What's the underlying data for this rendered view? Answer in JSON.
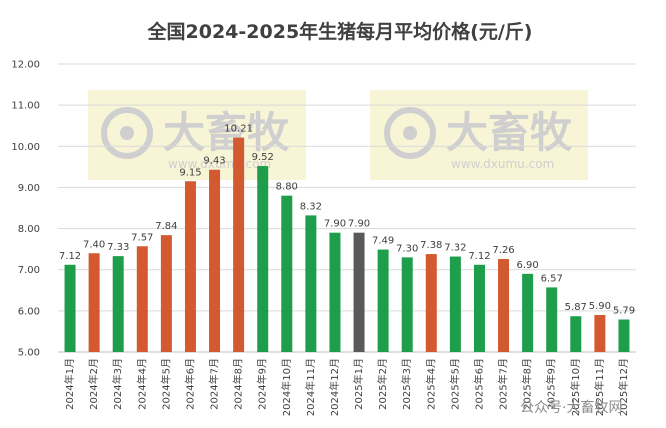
{
  "chart_data": {
    "type": "bar",
    "title": "全国2024-2025年生猪每月平均价格(元/斤)",
    "xlabel": "",
    "ylabel": "",
    "ylim": [
      5.0,
      12.0
    ],
    "yticks": [
      "5.00",
      "6.00",
      "7.00",
      "8.00",
      "9.00",
      "10.00",
      "11.00",
      "12.00"
    ],
    "grid": true,
    "legend": "none",
    "categories": [
      "2024年1月",
      "2024年2月",
      "2024年3月",
      "2024年4月",
      "2024年5月",
      "2024年6月",
      "2024年7月",
      "2024年8月",
      "2024年9月",
      "2024年10月",
      "2024年11月",
      "2024年12月",
      "2025年1月",
      "2025年2月",
      "2025年3月",
      "2025年4月",
      "2025年5月",
      "2025年6月",
      "2025年7月",
      "2025年8月",
      "2025年9月",
      "2025年10月",
      "2025年11月",
      "2025年12月"
    ],
    "values": [
      7.12,
      7.4,
      7.33,
      7.57,
      7.84,
      9.15,
      9.43,
      10.21,
      9.52,
      8.8,
      8.32,
      7.9,
      7.9,
      7.49,
      7.3,
      7.38,
      7.32,
      7.12,
      7.26,
      6.9,
      6.57,
      5.87,
      5.9,
      5.79
    ],
    "value_labels": [
      "7.12",
      "7.40",
      "7.33",
      "7.57",
      "7.84",
      "9.15",
      "9.43",
      "10.21",
      "9.52",
      "8.80",
      "8.32",
      "7.90",
      "7.90",
      "7.49",
      "7.30",
      "7.38",
      "7.32",
      "7.12",
      "7.26",
      "6.90",
      "6.57",
      "5.87",
      "5.90",
      "5.79"
    ],
    "bar_colors": [
      "#1e9e4a",
      "#d35a30",
      "#1e9e4a",
      "#d35a30",
      "#d35a30",
      "#d35a30",
      "#d35a30",
      "#d35a30",
      "#1e9e4a",
      "#1e9e4a",
      "#1e9e4a",
      "#1e9e4a",
      "#595959",
      "#1e9e4a",
      "#1e9e4a",
      "#d35a30",
      "#1e9e4a",
      "#1e9e4a",
      "#d35a30",
      "#1e9e4a",
      "#1e9e4a",
      "#1e9e4a",
      "#d35a30",
      "#1e9e4a"
    ]
  },
  "watermark": {
    "brand": "大畜牧",
    "url": "www.dxumu.com",
    "color": "#cfcfcf",
    "background": "#f6f0c8"
  },
  "footer_watermark": "公众号·大畜牧网",
  "colors": {
    "rise": "#d35a30",
    "fall": "#1e9e4a",
    "flat": "#595959"
  }
}
